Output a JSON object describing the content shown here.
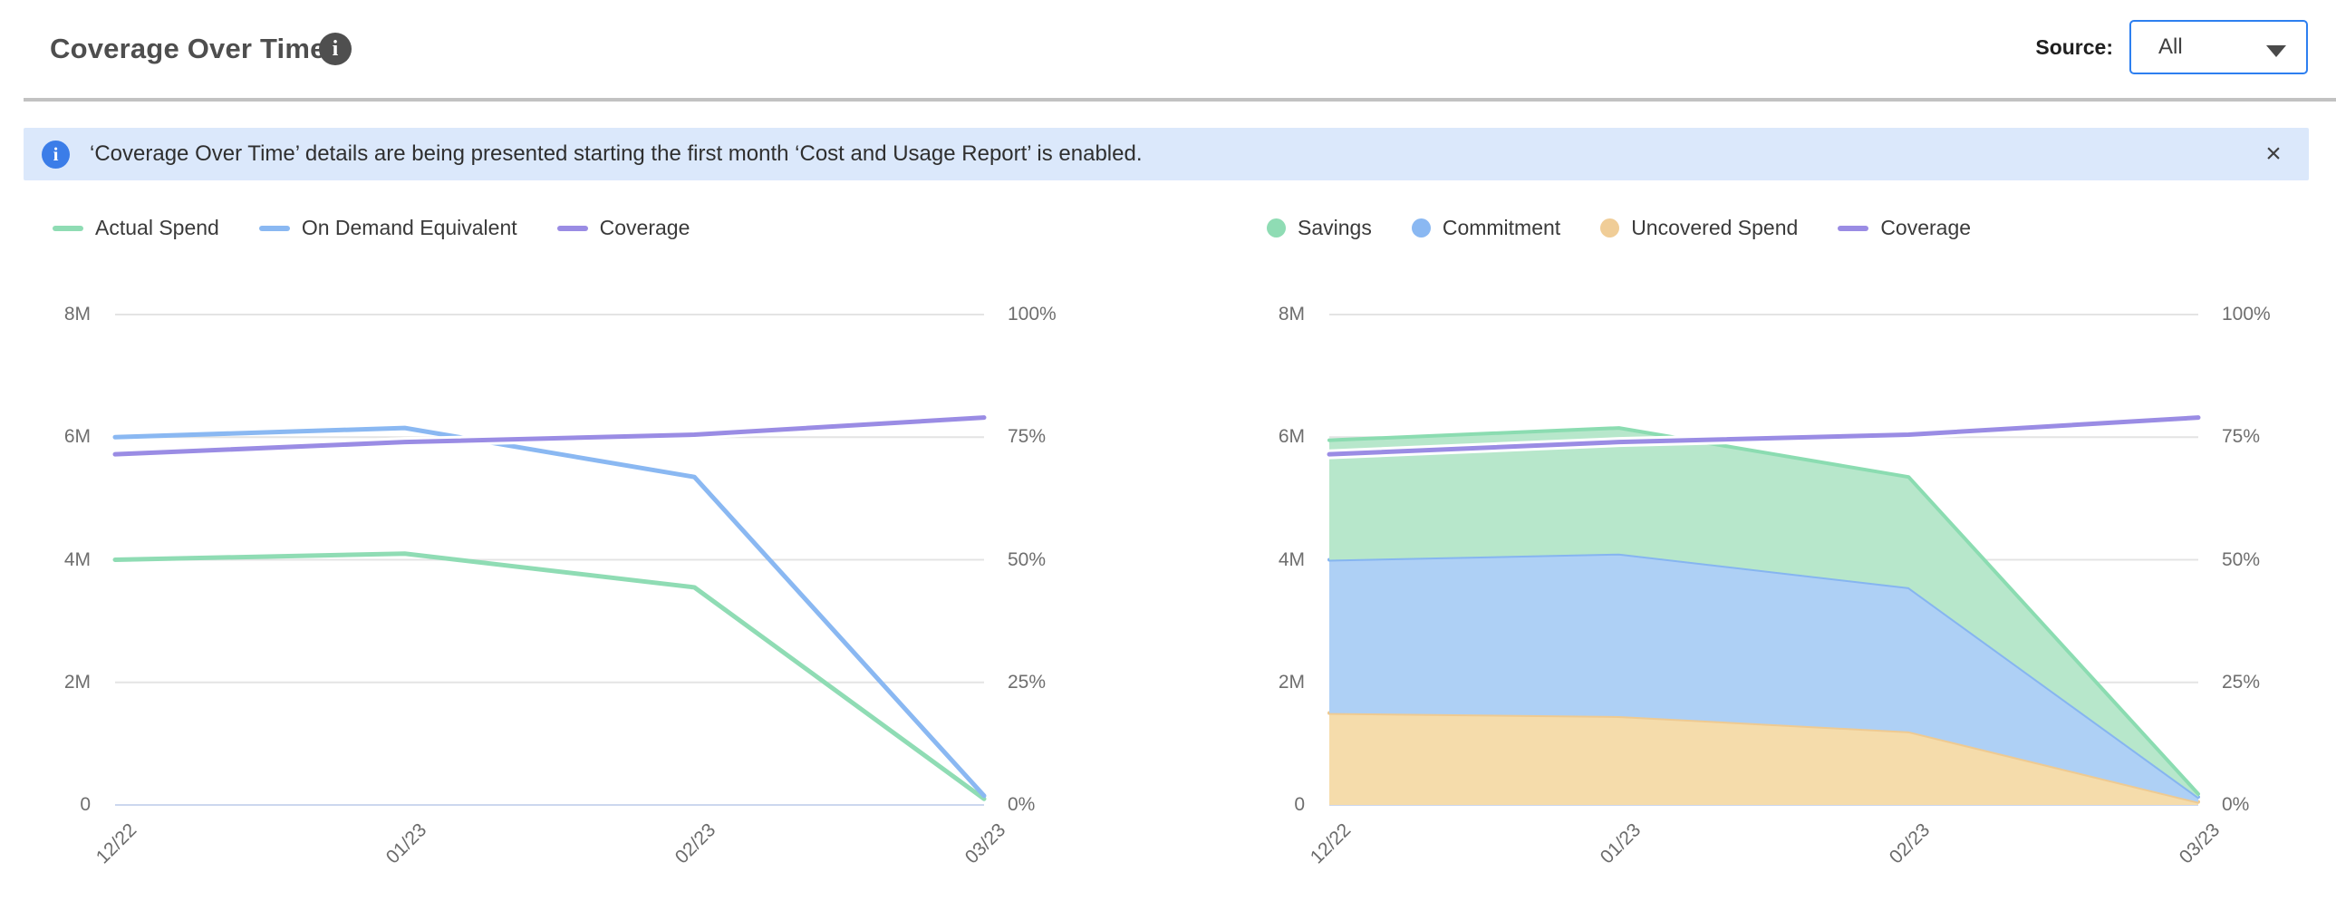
{
  "header": {
    "title": "Coverage Over Time",
    "info_icon": "i",
    "source_label": "Source:",
    "source_value": "All"
  },
  "banner": {
    "info_icon": "i",
    "text": "‘Coverage Over Time’ details are being presented starting the first month ‘Cost and Usage Report’ is enabled.",
    "close_icon": "×"
  },
  "colors": {
    "accent_blue": "#2d7ff0",
    "banner_bg": "#dbe8fb",
    "banner_icon": "#3b7de8",
    "gridline": "#e4e4e4",
    "axis_line": "#ccd7ee",
    "tick_text": "#6e6e6e",
    "green_line": "#8fdcb4",
    "blue_line": "#8ab8f2",
    "purple_line": "#9a8ce4",
    "green_fill": "#b7e7cb",
    "blue_fill": "#aed0f5",
    "orange_fill": "#f5dcab"
  },
  "chart_data": [
    {
      "type": "line",
      "title": "",
      "categories": [
        "12/22",
        "01/23",
        "02/23",
        "03/23"
      ],
      "unit_left": "M",
      "y_left": {
        "min": 0,
        "max": 8,
        "tick_values": [
          8,
          6,
          4,
          2,
          0
        ],
        "tick_labels": [
          "8M",
          "6M",
          "4M",
          "2M",
          "0"
        ]
      },
      "y_right": {
        "min": 0,
        "max": 100,
        "tick_values": [
          100,
          75,
          50,
          25,
          0
        ],
        "tick_labels": [
          "100%",
          "75%",
          "50%",
          "25%",
          "0%"
        ]
      },
      "grid": true,
      "legend_position": "top-left",
      "legend": [
        {
          "label": "Actual Spend",
          "marker": "line",
          "color": "#8fdcb4"
        },
        {
          "label": "On Demand Equivalent",
          "marker": "line",
          "color": "#8ab8f2"
        },
        {
          "label": "Coverage",
          "marker": "line",
          "color": "#9a8ce4"
        }
      ],
      "series": [
        {
          "name": "Actual Spend",
          "role": "line",
          "yaxis": "left",
          "color": "#8fdcb4",
          "halo": false,
          "values": [
            4.0,
            4.1,
            3.55,
            0.1
          ]
        },
        {
          "name": "On Demand Equivalent",
          "role": "line",
          "yaxis": "left",
          "color": "#8ab8f2",
          "halo": false,
          "values": [
            6.0,
            6.15,
            5.35,
            0.15
          ]
        },
        {
          "name": "Coverage",
          "role": "line",
          "yaxis": "right",
          "color": "#9a8ce4",
          "halo": true,
          "values": [
            71.5,
            74,
            75.5,
            79
          ]
        }
      ]
    },
    {
      "type": "area",
      "stacked": true,
      "title": "",
      "categories": [
        "12/22",
        "01/23",
        "02/23",
        "03/23"
      ],
      "unit_left": "M",
      "y_left": {
        "min": 0,
        "max": 8,
        "tick_values": [
          8,
          6,
          4,
          2,
          0
        ],
        "tick_labels": [
          "8M",
          "6M",
          "4M",
          "2M",
          "0"
        ]
      },
      "y_right": {
        "min": 0,
        "max": 100,
        "tick_values": [
          100,
          75,
          50,
          25,
          0
        ],
        "tick_labels": [
          "100%",
          "75%",
          "50%",
          "25%",
          "0%"
        ]
      },
      "grid": true,
      "legend_position": "top-left",
      "legend": [
        {
          "label": "Savings",
          "marker": "circle",
          "color": "#8fdcb4"
        },
        {
          "label": "Commitment",
          "marker": "circle",
          "color": "#8ab8f2"
        },
        {
          "label": "Uncovered Spend",
          "marker": "circle",
          "color": "#f0cd97"
        },
        {
          "label": "Coverage",
          "marker": "line",
          "color": "#9a8ce4"
        }
      ],
      "series": [
        {
          "name": "Uncovered Spend",
          "role": "area",
          "yaxis": "left",
          "fill": "#f5dcab",
          "line": "#eeca92",
          "values": [
            1.5,
            1.45,
            1.2,
            0.05
          ]
        },
        {
          "name": "Commitment",
          "role": "area",
          "yaxis": "left",
          "fill": "#aed0f5",
          "line": "#86b5f0",
          "values": [
            2.5,
            2.65,
            2.35,
            0.08
          ]
        },
        {
          "name": "Savings",
          "role": "area",
          "yaxis": "left",
          "fill": "#b7e7cb",
          "line": "#8bdcb1",
          "values": [
            1.95,
            2.05,
            1.8,
            0.05
          ]
        },
        {
          "name": "Coverage",
          "role": "line",
          "yaxis": "right",
          "color": "#9a8ce4",
          "halo": true,
          "values": [
            71.5,
            74,
            75.5,
            79
          ]
        }
      ]
    }
  ]
}
